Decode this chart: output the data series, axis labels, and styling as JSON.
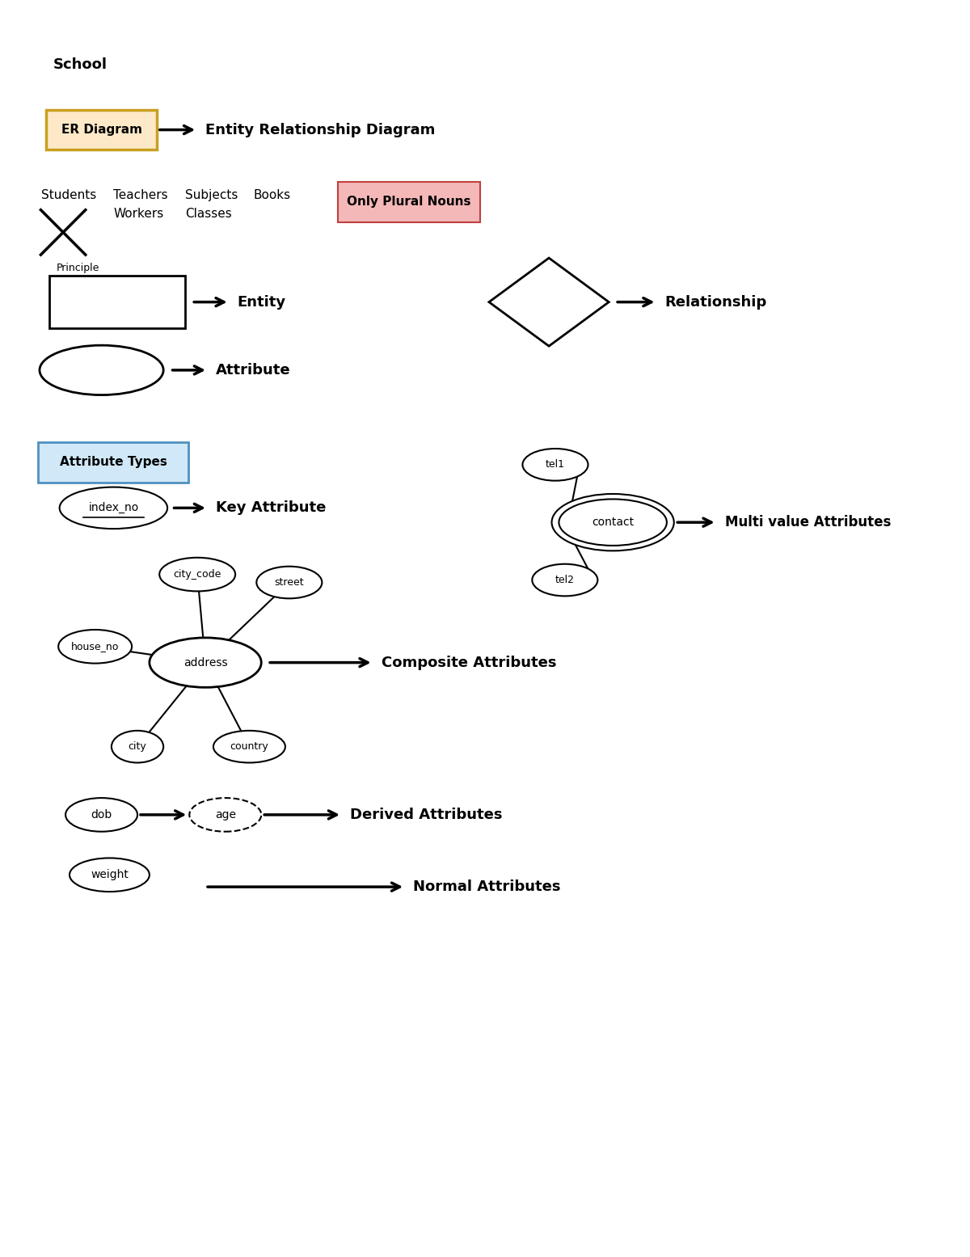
{
  "bg_color": "#ffffff",
  "title_school": "School",
  "er_box_text": "ER Diagram",
  "er_box_bg": "#fde9c8",
  "er_box_edge": "#c8a020",
  "er_arrow_text": "Entity Relationship Diagram",
  "noun_box_text": "Only Plural Nouns",
  "noun_box_bg": "#f4b8b8",
  "noun_box_edge": "#c04040",
  "attr_types_box_text": "Attribute Types",
  "attr_types_box_bg": "#d0e8f8",
  "attr_types_box_edge": "#5090c0"
}
